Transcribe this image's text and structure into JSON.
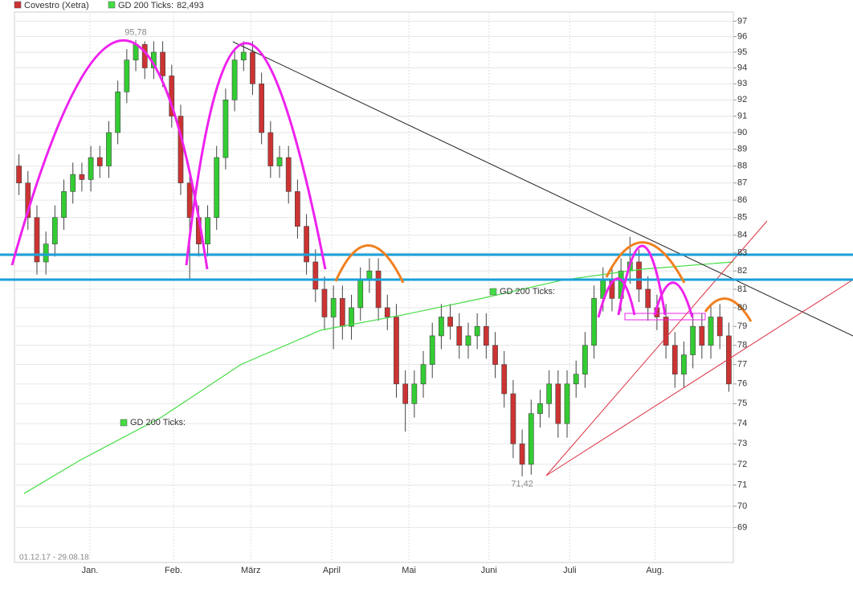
{
  "chart_data": {
    "type": "candlestick",
    "date_range": "01.12.17 - 29.08.18",
    "log_scale": true,
    "grid": true,
    "up_color": "#33cc33",
    "down_color": "#cc3333",
    "xlim": [
      -0.5,
      79.5
    ],
    "xticks": [
      {
        "value": 7.9,
        "label": "Jan."
      },
      {
        "value": 17.2,
        "label": "Feb."
      },
      {
        "value": 25.8,
        "label": "März"
      },
      {
        "value": 34.8,
        "label": "April"
      },
      {
        "value": 43.4,
        "label": "Mai"
      },
      {
        "value": 52.3,
        "label": "Juni"
      },
      {
        "value": 61.3,
        "label": "Juli"
      },
      {
        "value": 70.8,
        "label": "Aug."
      }
    ],
    "ylim": [
      67.4,
      97.6
    ],
    "yticks": [
      69,
      70,
      71,
      72,
      73,
      74,
      75,
      76,
      77,
      78,
      79,
      80,
      81,
      82,
      83,
      84,
      85,
      86,
      87,
      88,
      89,
      90,
      91,
      92,
      93,
      94,
      95,
      96,
      97
    ],
    "series": [
      {
        "name": "Covestro (Xetra)",
        "color": "#cc3333",
        "open": [
          88,
          87,
          85,
          82.5,
          83.5,
          85,
          86.5,
          87.5,
          87.2,
          88.5,
          88,
          90,
          92.5,
          94.5,
          95.5,
          94,
          95,
          93.5,
          91,
          87,
          85,
          83.5,
          85,
          88.5,
          92,
          94.5,
          95,
          93,
          90,
          88,
          88.5,
          86.5,
          84.5,
          82.5,
          81,
          79.5,
          80.5,
          79,
          80,
          81.5,
          82,
          80,
          79.5,
          76,
          75,
          76,
          77,
          78.5,
          79.5,
          79,
          78,
          78.5,
          79,
          78,
          77,
          75.5,
          73,
          72,
          74.5,
          75,
          76,
          74,
          76,
          76.5,
          78,
          80.5,
          81.5,
          80.5,
          82,
          82.5,
          81,
          80,
          79.5,
          78,
          76.5,
          77.5,
          79,
          78,
          79.5,
          78.5
        ],
        "high": [
          88.7,
          87.7,
          85.7,
          84.2,
          85.7,
          87.2,
          88.2,
          88.2,
          89.2,
          89.2,
          90.7,
          93.2,
          95.2,
          95.78,
          95.7,
          95.7,
          95.7,
          94.2,
          91.7,
          87.7,
          85.7,
          85.7,
          89.2,
          92.7,
          95.2,
          95.7,
          95.7,
          93.7,
          90.7,
          89.2,
          89.2,
          87.2,
          85.2,
          83.2,
          81.7,
          81.2,
          81.2,
          80.7,
          82.2,
          82.7,
          82.7,
          80.7,
          80.2,
          76.7,
          76.7,
          77.7,
          79.2,
          80.2,
          80.2,
          79.7,
          79.2,
          79.7,
          79.7,
          78.7,
          77.7,
          76.2,
          73.7,
          75.2,
          75.7,
          76.7,
          76.7,
          76.7,
          77.2,
          78.7,
          81.2,
          82.2,
          82.2,
          82.7,
          83.9,
          83.2,
          81.7,
          80.7,
          80.2,
          78.7,
          78.2,
          79.7,
          79.7,
          80.2,
          80.2,
          79.2
        ],
        "low": [
          86.3,
          84.3,
          81.8,
          81.8,
          82.8,
          84.3,
          85.8,
          86.5,
          86.5,
          87.3,
          87.3,
          89.3,
          91.8,
          93.8,
          93.3,
          93.3,
          92.8,
          90.3,
          86.3,
          81.5,
          82.8,
          82.8,
          84.3,
          87.8,
          91.3,
          93.8,
          92.3,
          89.3,
          87.3,
          87.3,
          85.8,
          83.8,
          81.8,
          80.3,
          78.8,
          77.8,
          78.3,
          78.3,
          79.3,
          80.8,
          79.3,
          78.8,
          75.3,
          73.6,
          74.3,
          75.3,
          76.3,
          77.8,
          78.3,
          77.3,
          77.3,
          77.8,
          77.3,
          76.3,
          74.8,
          72.3,
          71.42,
          71.5,
          73.8,
          74.3,
          73.3,
          73.3,
          75.3,
          75.8,
          77.3,
          79.8,
          79.8,
          79.8,
          81.3,
          80.3,
          79.3,
          78.8,
          77.3,
          75.8,
          75.8,
          76.8,
          77.3,
          77.3,
          77.8,
          75.6
        ],
        "close": [
          87,
          85,
          82.5,
          83.5,
          85,
          86.5,
          87.5,
          87.2,
          88.5,
          88,
          90,
          92.5,
          94.5,
          95.5,
          94,
          95,
          93.5,
          91,
          87,
          85,
          83.5,
          85,
          88.5,
          92,
          94.5,
          95,
          93,
          90,
          88,
          88.5,
          86.5,
          84.5,
          82.5,
          81,
          79.5,
          80.5,
          79,
          80,
          81.5,
          82,
          80,
          79.5,
          76,
          75,
          76,
          77,
          78.5,
          79.5,
          79,
          78,
          78.5,
          79,
          78,
          77,
          75.5,
          73,
          72,
          74.5,
          75,
          76,
          74,
          76,
          76.5,
          78,
          80.5,
          81.5,
          80.5,
          82,
          82.5,
          81,
          80,
          79.5,
          78,
          76.5,
          77.5,
          79,
          78,
          79.5,
          78.5,
          76
        ]
      },
      {
        "name": "GD 200 Ticks:",
        "color": "#44dd44",
        "last_value": {
          "value": 82.493,
          "label": "82,493"
        },
        "x": [
          0.57,
          6.8,
          15.8,
          24.7,
          33.6,
          42.6,
          51.5,
          60.5,
          69.4,
          79.5
        ],
        "values": [
          70.6,
          72.2,
          74.3,
          77,
          78.8,
          79.6,
          80.5,
          81.5,
          82.1,
          82.5
        ]
      }
    ],
    "gd_labels": [
      "GD 200 Ticks:",
      "GD 200 Ticks:"
    ],
    "annotations": [
      {
        "value": 95.78,
        "label": "95,78"
      },
      {
        "value": 71.42,
        "label": "71,42"
      }
    ]
  }
}
